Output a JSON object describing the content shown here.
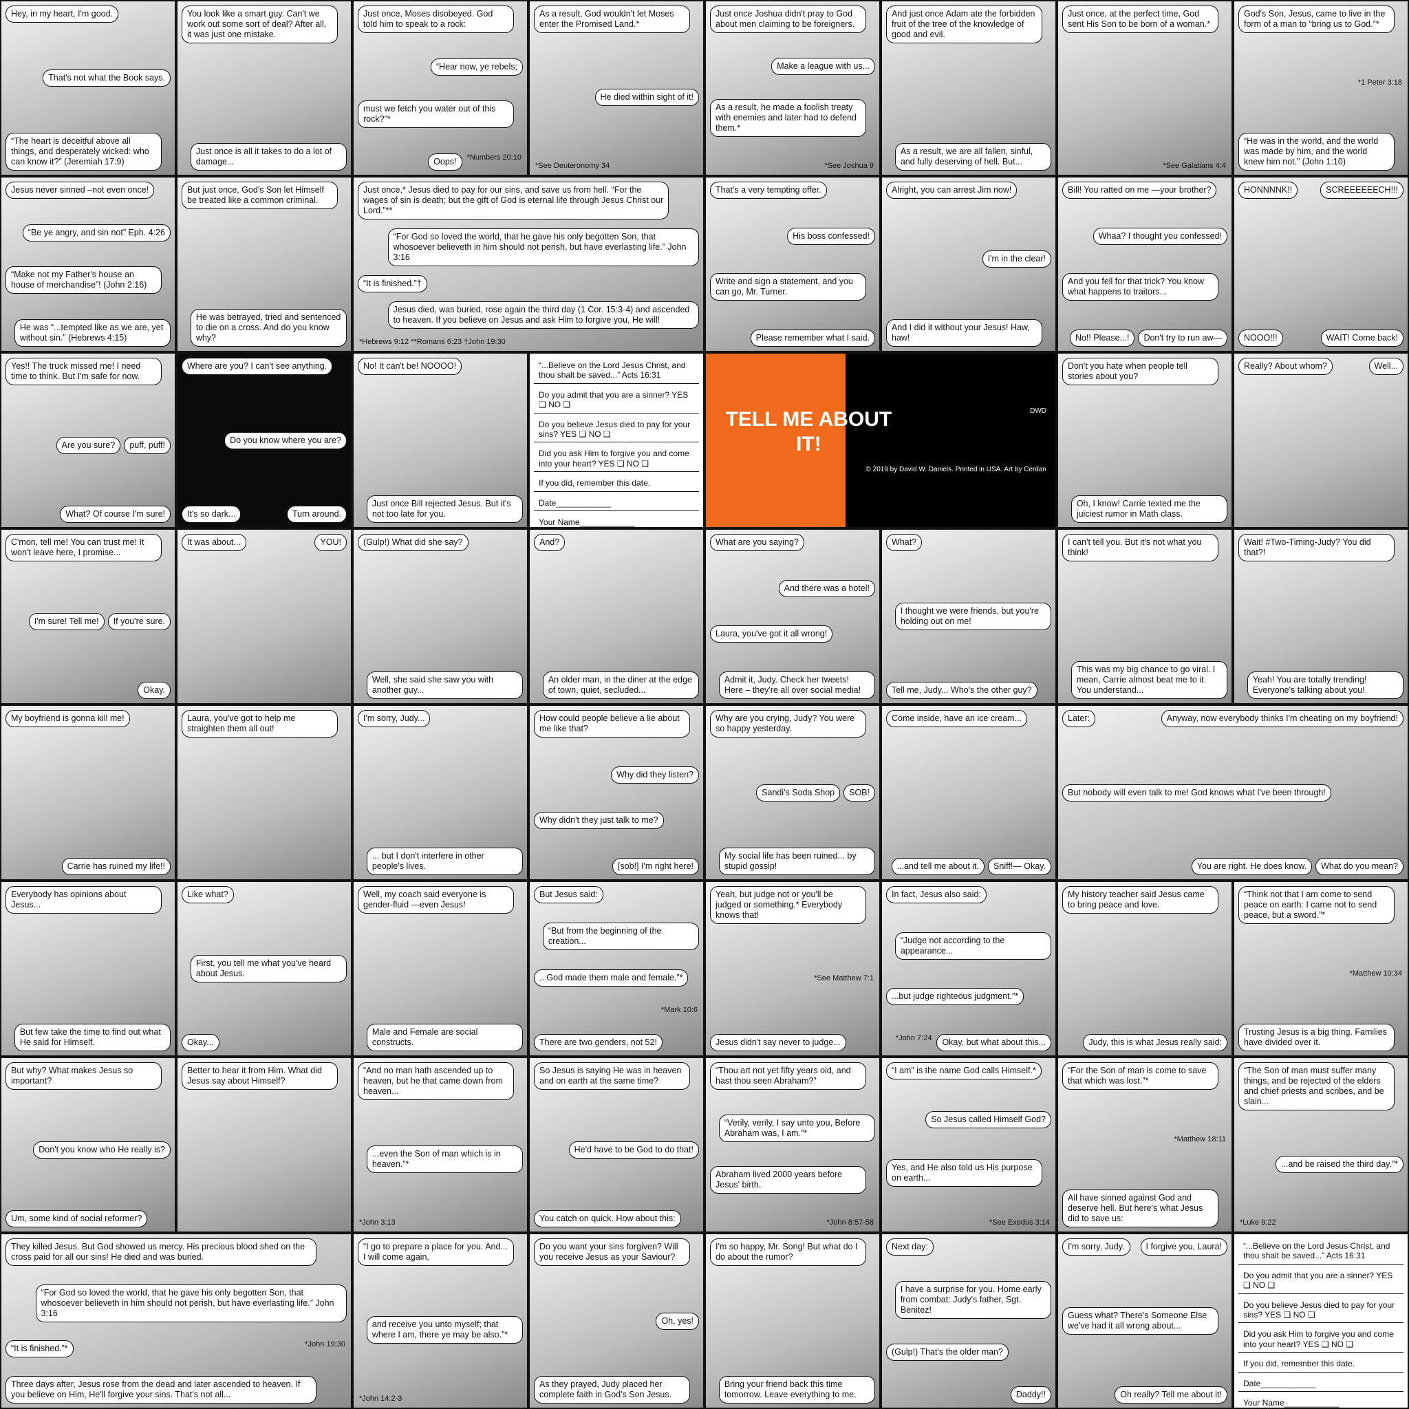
{
  "rows": [
    {
      "panels": [
        {
          "texts": [
            "Hey, in my heart, I'm good.",
            "That's not what the Book says.",
            "“The heart is deceitful above all things, and desperately wicked: who can know it?” (Jeremiah 17:9)"
          ]
        },
        {
          "texts": [
            "You look like a smart guy. Can't we work out some sort of deal? After all, it was just one mistake.",
            "Just once is all it takes to do a lot of damage..."
          ]
        },
        {
          "texts": [
            "Just once, Moses disobeyed. God told him to speak to a rock:",
            "“Hear now, ye rebels;",
            "must we fetch you water out of this rock?”*",
            "Oops!",
            "*Numbers 20:10"
          ]
        },
        {
          "texts": [
            "As a result, God wouldn't let Moses enter the Promised Land.*",
            "He died within sight of it!",
            "*See Deuteronomy 34"
          ]
        },
        {
          "texts": [
            "Just once Joshua didn't pray to God about men claiming to be foreigners.",
            "Make a league with us...",
            "As a result, he made a foolish treaty with enemies and later had to defend them.*",
            "*See Joshua 9"
          ]
        },
        {
          "texts": [
            "And just once Adam ate the forbidden fruit of the tree of the knowledge of good and evil.",
            "As a result, we are all fallen, sinful, and fully deserving of hell. But..."
          ]
        },
        {
          "texts": [
            "Just once, at the perfect time, God sent His Son to be born of a woman.*",
            "*See Galatians 4:4"
          ]
        },
        {
          "texts": [
            "God's Son, Jesus, came to live in the form of a man to “bring us to God.”*",
            "*1 Peter 3:18",
            "“He was in the world, and the world was made by him, and the world knew him not.” (John 1:10)"
          ]
        }
      ]
    },
    {
      "panels": [
        {
          "texts": [
            "Jesus never sinned –not even once!",
            "“Be ye angry, and sin not” Eph. 4:26",
            "“Make not my Father's house an house of merchandise”! (John 2:16)",
            "He was “...tempted like as we are, yet without sin.” (Hebrews 4:15)"
          ]
        },
        {
          "texts": [
            "But just once, God's Son let Himself be treated like a common criminal.",
            "He was betrayed, tried and sentenced to die on a cross. And do you know why?"
          ]
        },
        {
          "texts": [
            "Just once,* Jesus died to pay for our sins, and save us from hell. “For the wages of sin is death; but the gift of God is eternal life through Jesus Christ our Lord.”**",
            "“For God so loved the world, that he gave his only begotten Son, that whosoever believeth in him should not perish, but have everlasting life.” John 3:16",
            "“It is finished.”†",
            "Jesus died, was buried, rose again the third day (1 Cor. 15:3-4) and ascended to heaven. If you believe on Jesus and ask Him to forgive you, He will!",
            "*Hebrews 9:12 **Romans 6:23 †John 19:30"
          ]
        },
        {
          "texts": [
            "That's a very tempting offer.",
            "His boss confessed!",
            "Write and sign a statement, and you can go, Mr. Turner.",
            "Please remember what I said."
          ]
        },
        {
          "texts": [
            "Alright, you can arrest Jim now!",
            "I'm in the clear!",
            "And I did it without your Jesus! Haw, haw!"
          ]
        },
        {
          "texts": [
            "Bill! You ratted on me —your brother?",
            "Whaa? I thought you confessed!",
            "And you fell for that trick? You know what happens to traitors...",
            "No!! Please...!",
            "Don't try to run aw—"
          ]
        },
        {
          "texts": [
            "HONNNNK!!",
            "SCREEEEEECH!!!",
            "NOOO!!!",
            "WAIT! Come back!"
          ]
        }
      ]
    },
    {
      "panels": [
        {
          "texts": [
            "Yes!! The truck missed me! I need time to think. But I'm safe for now.",
            "Are you sure?",
            "puff, puff!",
            "What? Of course I'm sure!"
          ]
        },
        {
          "texts": [
            "Where are you? I can't see anything.",
            "Do you know where you are?",
            "It's so dark...",
            "Turn around."
          ]
        },
        {
          "texts": [
            "No! It can't be! NOOOO!",
            "Just once Bill rejected Jesus. But it's not too late for you."
          ]
        },
        {
          "texts": [
            "“...Believe on the Lord Jesus Christ, and thou shalt be saved...” Acts 16:31",
            "Do you admit that you are a sinner? YES ❑ NO ❑",
            "Do you believe Jesus died to pay for your sins? YES ❑ NO ❑",
            "Did you ask Him to forgive you and come into your heart? YES ❑ NO ❑",
            "If you did, remember this date.",
            "Date____________",
            "Your Name____________"
          ]
        },
        {
          "texts": [
            "TELL ME ABOUT IT!",
            "DWD",
            "© 2019 by David W. Daniels. Printed in USA. Art by Cerdan"
          ]
        },
        {
          "texts": [
            "Don't you hate when people tell stories about you?",
            "Oh, I know! Carrie texted me the juiciest rumor in Math class."
          ]
        },
        {
          "texts": [
            "Really? About whom?",
            "Well..."
          ]
        }
      ]
    },
    {
      "panels": [
        {
          "texts": [
            "C'mon, tell me! You can trust me! It won't leave here, I promise...",
            "I'm sure! Tell me!",
            "If you're sure.",
            "Okay."
          ]
        },
        {
          "texts": [
            "It was about...",
            "YOU!"
          ]
        },
        {
          "texts": [
            "(Gulp!) What did she say?",
            "Well, she said she saw you with another guy..."
          ]
        },
        {
          "texts": [
            "And?",
            "An older man, in the diner at the edge of town, quiet, secluded..."
          ]
        },
        {
          "texts": [
            "What are you saying?",
            "And there was a hotel!",
            "Laura, you've got it all wrong!",
            "Admit it, Judy. Check her tweets! Here – they're all over social media!"
          ]
        },
        {
          "texts": [
            "What?",
            "I thought we were friends, but you're holding out on me!",
            "Tell me, Judy... Who's the other guy?"
          ]
        },
        {
          "texts": [
            "I can't tell you. But it's not what you think!",
            "This was my big chance to go viral. I mean, Carrie almost beat me to it. You understand..."
          ]
        },
        {
          "texts": [
            "Wait! #Two-Timing-Judy? You did that?!",
            "Yeah! You are totally trending! Everyone's talking about you!"
          ]
        }
      ]
    },
    {
      "panels": [
        {
          "texts": [
            "My boyfriend is gonna kill me!",
            "Carrie has ruined my life!!"
          ]
        },
        {
          "texts": [
            "Laura, you've got to help me straighten them all out!"
          ]
        },
        {
          "texts": [
            "I'm sorry, Judy...",
            "... but I don't interfere in other people's lives."
          ]
        },
        {
          "texts": [
            "How could people believe a lie about me like that?",
            "Why did they listen?",
            "Why didn't they just talk to me?",
            "[sob!] I'm right here!"
          ]
        },
        {
          "texts": [
            "Why are you crying, Judy? You were so happy yesterday.",
            "Sandi's Soda Shop",
            "SOB!",
            "My social life has been ruined... by stupid gossip!"
          ]
        },
        {
          "texts": [
            "Come inside, have an ice cream...",
            "...and tell me about it.",
            "Sniff!— Okay."
          ]
        },
        {
          "texts": [
            "Later:",
            "Anyway, now everybody thinks I'm cheating on my boyfriend!",
            "But nobody will even talk to me! God knows what I've been through!",
            "You are right. He does know.",
            "What do you mean?"
          ]
        }
      ]
    },
    {
      "panels": [
        {
          "texts": [
            "Everybody has opinions about Jesus...",
            "But few take the time to find out what He said for Himself."
          ]
        },
        {
          "texts": [
            "Like what?",
            "First, you tell me what you've heard about Jesus.",
            "Okay..."
          ]
        },
        {
          "texts": [
            "Well, my coach said everyone is gender-fluid —even Jesus!",
            "Male and Female are social constructs."
          ]
        },
        {
          "texts": [
            "But Jesus said:",
            "“But from the beginning of the creation...",
            "...God made them male and female.”*",
            "*Mark 10:6",
            "There are two genders, not 52!"
          ]
        },
        {
          "texts": [
            "Yeah, but judge not or you'll be judged or something.* Everybody knows that!",
            "*See Matthew 7:1",
            "Jesus didn't say never to judge..."
          ]
        },
        {
          "texts": [
            "In fact, Jesus also said:",
            "“Judge not according to the appearance...",
            "...but judge righteous judgment.”*",
            "*John 7:24",
            "Okay, but what about this..."
          ]
        },
        {
          "texts": [
            "My history teacher said Jesus came to bring peace and love.",
            "Judy, this is what Jesus really said:"
          ]
        },
        {
          "texts": [
            "“Think not that I am come to send peace on earth: I came not to send peace, but a sword.”*",
            "*Matthew 10:34",
            "Trusting Jesus is a big thing. Families have divided over it."
          ]
        }
      ]
    },
    {
      "panels": [
        {
          "texts": [
            "But why? What makes Jesus so important?",
            "Don't you know who He really is?",
            "Um, some kind of social reformer?"
          ]
        },
        {
          "texts": [
            "Better to hear it from Him. What did Jesus say about Himself?"
          ]
        },
        {
          "texts": [
            "“And no man hath ascended up to heaven, but he that came down from heaven...",
            "...even the Son of man which is in heaven.”*",
            "*John 3:13"
          ]
        },
        {
          "texts": [
            "So Jesus is saying He was in heaven and on earth at the same time?",
            "He'd have to be God to do that!",
            "You catch on quick. How about this:"
          ]
        },
        {
          "texts": [
            "“Thou art not yet fifty years old, and hast thou seen Abraham?”",
            "“Verily, verily, I say unto you, Before Abraham was, I am.”*",
            "Abraham lived 2000 years before Jesus' birth.",
            "*John 8:57-58"
          ]
        },
        {
          "texts": [
            "“I am” is the name God calls Himself.*",
            "So Jesus called Himself God?",
            "Yes, and He also told us His purpose on earth...",
            "*See Exodus 3:14"
          ]
        },
        {
          "texts": [
            "“For the Son of man is come to save that which was lost.”*",
            "*Matthew 18:11",
            "All have sinned against God and deserve hell. But here's what Jesus did to save us:"
          ]
        },
        {
          "texts": [
            "“The Son of man must suffer many things, and be rejected of the elders and chief priests and scribes, and be slain...",
            "...and be raised the third day.”*",
            "*Luke 9:22"
          ]
        }
      ]
    },
    {
      "panels": [
        {
          "texts": [
            "They killed Jesus. But God showed us mercy. His precious blood shed on the cross paid for all our sins! He died and was buried.",
            "“For God so loved the world, that he gave his only begotten Son, that whosoever believeth in him should not perish, but have everlasting life.” John 3:16",
            "“It is finished.”*",
            "*John 19:30",
            "Three days after, Jesus rose from the dead and later ascended to heaven. If you believe on Him, He'll forgive your sins. That's not all..."
          ]
        },
        {
          "texts": [
            "“I go to prepare a place for you. And... I will come again,",
            "and receive you unto myself; that where I am, there ye may be also.”*",
            "*John 14:2-3"
          ]
        },
        {
          "texts": [
            "Do you want your sins forgiven? Will you receive Jesus as your Saviour?",
            "Oh, yes!",
            "As they prayed, Judy placed her complete faith in God's Son Jesus."
          ]
        },
        {
          "texts": [
            "I'm so happy, Mr. Song! But what do I do about the rumor?",
            "Bring your friend back this time tomorrow. Leave everything to me."
          ]
        },
        {
          "texts": [
            "Next day:",
            "I have a surprise for you. Home early from combat: Judy's father, Sgt. Benitez!",
            "(Gulp!) That's the older man?",
            "Daddy!!"
          ]
        },
        {
          "texts": [
            "I'm sorry, Judy.",
            "I forgive you, Laura!",
            "Guess what? There's Someone Else we've had it all wrong about...",
            "Oh really? Tell me about it!"
          ]
        },
        {
          "texts": [
            "“...Believe on the Lord Jesus Christ, and thou shalt be saved...” Acts 16:31",
            "Do you admit that you are a sinner? YES ❑ NO ❑",
            "Do you believe Jesus died to pay for your sins? YES ❑ NO ❑",
            "Did you ask Him to forgive you and come into your heart? YES ❑ NO ❑",
            "If you did, remember this date.",
            "Date____________",
            "Your Name____________"
          ]
        }
      ]
    }
  ]
}
